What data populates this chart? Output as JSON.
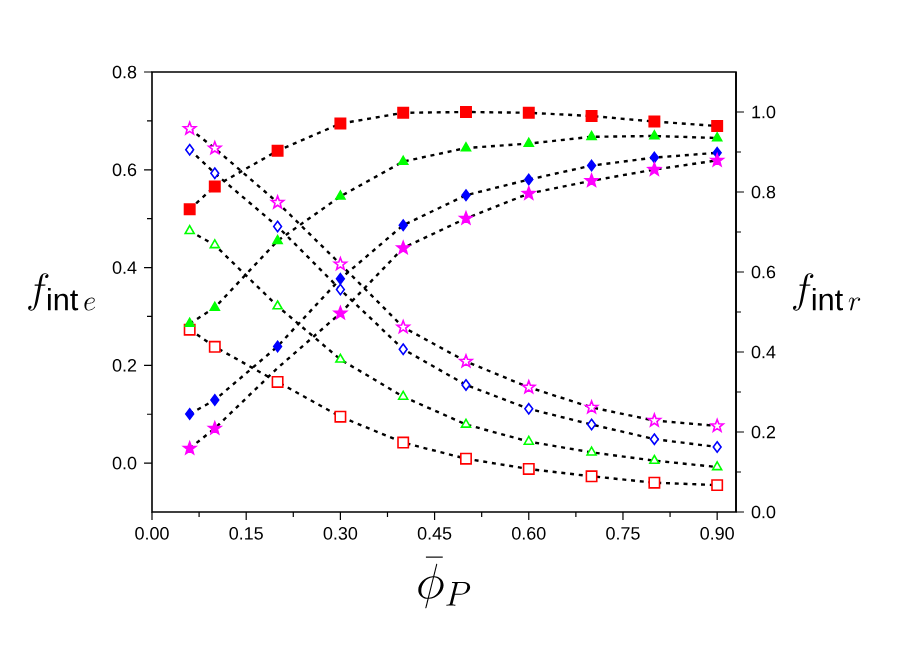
{
  "chart_data": {
    "type": "scatter",
    "xlabel": "\\bar{\\phi}_P",
    "ylabel": "f_{\\mathrm{int}\\,e}",
    "y2label": "f_{\\mathrm{int}\\,r}",
    "xlim": [
      0,
      0.93
    ],
    "ylim": [
      -0.1,
      0.8
    ],
    "y2lim": [
      0,
      1.1
    ],
    "xticks": [
      {
        "value": 0,
        "label": "0.00"
      },
      {
        "value": 0.15,
        "label": "0.15"
      },
      {
        "value": 0.3,
        "label": "0.30"
      },
      {
        "value": 0.45,
        "label": "0.45"
      },
      {
        "value": 0.6,
        "label": "0.60"
      },
      {
        "value": 0.75,
        "label": "0.75"
      },
      {
        "value": 0.9,
        "label": "0.90"
      }
    ],
    "yticks": [
      {
        "value": 0,
        "label": "0.0"
      },
      {
        "value": 0.2,
        "label": "0.2"
      },
      {
        "value": 0.4,
        "label": "0.4"
      },
      {
        "value": 0.6,
        "label": "0.6"
      },
      {
        "value": 0.8,
        "label": "0.8"
      }
    ],
    "y2ticks": [
      {
        "value": 0,
        "label": "0.0"
      },
      {
        "value": 0.2,
        "label": "0.2"
      },
      {
        "value": 0.4,
        "label": "0.4"
      },
      {
        "value": 0.6,
        "label": "0.6"
      },
      {
        "value": 0.8,
        "label": "0.8"
      },
      {
        "value": 1.0,
        "label": "1.0"
      }
    ],
    "x": [
      0.06,
      0.1,
      0.2,
      0.3,
      0.4,
      0.5,
      0.6,
      0.7,
      0.8,
      0.9
    ],
    "series": [
      {
        "type": "line",
        "color": "#000000",
        "marker": "none",
        "line_style": "dotted",
        "values": [
          0.273,
          0.238,
          0.166,
          0.095,
          0.042,
          0.009,
          -0.012,
          -0.027,
          -0.04,
          -0.045
        ]
      },
      {
        "type": "line",
        "color": "#000000",
        "marker": "none",
        "line_style": "dotted",
        "values": [
          0.475,
          0.446,
          0.321,
          0.212,
          0.136,
          0.079,
          0.044,
          0.022,
          0.005,
          -0.008
        ]
      },
      {
        "type": "line",
        "color": "#000000",
        "marker": "none",
        "line_style": "dotted",
        "values": [
          0.641,
          0.593,
          0.484,
          0.355,
          0.233,
          0.16,
          0.111,
          0.079,
          0.049,
          0.033
        ]
      },
      {
        "type": "line",
        "color": "#000000",
        "marker": "none",
        "line_style": "dotted",
        "values": [
          0.684,
          0.644,
          0.533,
          0.407,
          0.278,
          0.208,
          0.155,
          0.114,
          0.087,
          0.076
        ]
      },
      {
        "type": "line",
        "axis": "y2",
        "color": "#000000",
        "marker": "none",
        "line_style": "dotted",
        "values": [
          0.757,
          0.814,
          0.903,
          0.971,
          0.998,
          1.0,
          0.998,
          0.99,
          0.976,
          0.965
        ]
      },
      {
        "type": "line",
        "axis": "y2",
        "color": "#000000",
        "marker": "none",
        "line_style": "dotted",
        "values": [
          0.471,
          0.511,
          0.678,
          0.789,
          0.876,
          0.91,
          0.921,
          0.938,
          0.94,
          0.935
        ]
      },
      {
        "type": "line",
        "axis": "y2",
        "color": "#000000",
        "marker": "none",
        "line_style": "dotted",
        "values": [
          0.245,
          0.28,
          0.414,
          0.583,
          0.717,
          0.792,
          0.831,
          0.866,
          0.886,
          0.898
        ]
      },
      {
        "type": "line",
        "axis": "y2",
        "color": "#000000",
        "marker": "none",
        "line_style": "dotted",
        "values": [
          0.159,
          0.209,
          0.36,
          0.497,
          0.66,
          0.734,
          0.796,
          0.828,
          0.856,
          0.879
        ]
      },
      {
        "color": "#ff0000",
        "marker": "square",
        "values": [
          0.273,
          0.238,
          0.166,
          0.095,
          0.042,
          0.009,
          -0.012,
          -0.027,
          -0.04,
          -0.045
        ]
      },
      {
        "color": "#00ff00",
        "marker": "triangle",
        "values": [
          0.475,
          0.446,
          0.321,
          0.212,
          0.136,
          0.079,
          0.044,
          0.022,
          0.005,
          -0.008
        ]
      },
      {
        "color": "#0000ff",
        "marker": "diamond",
        "values": [
          0.641,
          0.593,
          0.484,
          0.355,
          0.233,
          0.16,
          0.111,
          0.079,
          0.049,
          0.033
        ]
      },
      {
        "color": "#ff00ff",
        "marker": "star",
        "values": [
          0.684,
          0.644,
          0.533,
          0.407,
          0.278,
          0.208,
          0.155,
          0.114,
          0.087,
          0.076
        ]
      },
      {
        "axis": "y2",
        "color": "#ff0000",
        "marker": "square",
        "values": [
          0.757,
          0.814,
          0.903,
          0.971,
          0.998,
          1.0,
          0.998,
          0.99,
          0.976,
          0.965
        ]
      },
      {
        "axis": "y2",
        "color": "#00ff00",
        "marker": "triangle",
        "values": [
          0.471,
          0.511,
          0.678,
          0.789,
          0.876,
          0.91,
          0.921,
          0.938,
          0.94,
          0.935
        ]
      },
      {
        "axis": "y2",
        "color": "#0000ff",
        "marker": "diamond",
        "values": [
          0.245,
          0.28,
          0.414,
          0.583,
          0.717,
          0.792,
          0.831,
          0.866,
          0.886,
          0.898
        ]
      },
      {
        "axis": "y2",
        "color": "#ff00ff",
        "marker": "star",
        "values": [
          0.159,
          0.209,
          null,
          0.497,
          0.66,
          0.734,
          0.796,
          0.828,
          0.856,
          0.879
        ]
      }
    ]
  }
}
